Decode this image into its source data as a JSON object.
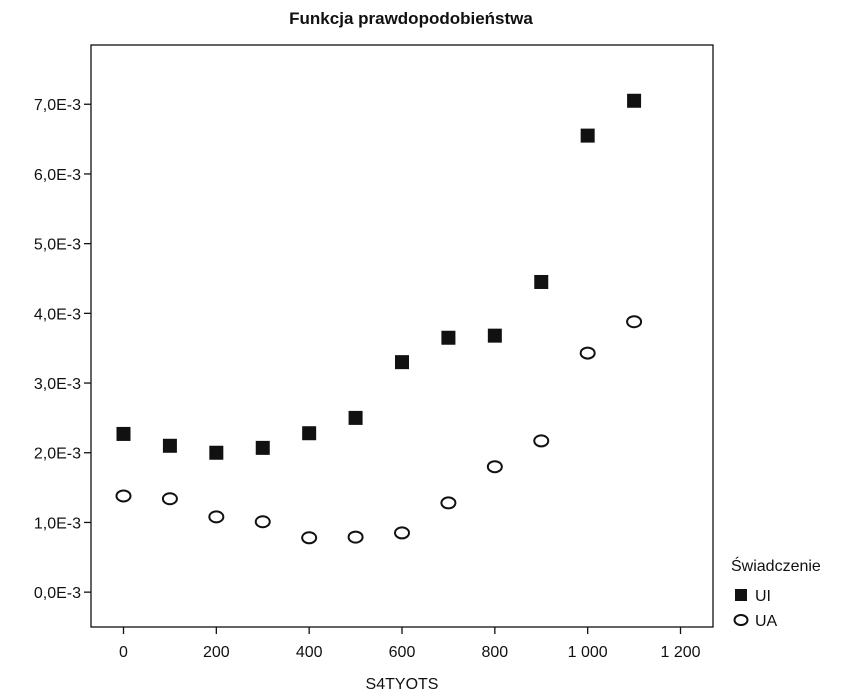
{
  "chart_data": {
    "type": "scatter",
    "title": "Funkcja prawdopodobieństwa",
    "xlabel": "S4TYOTS",
    "ylabel": "",
    "xlim": [
      -70,
      1270
    ],
    "ylim": [
      -0.0005,
      0.00785
    ],
    "x_ticks": [
      0,
      200,
      400,
      600,
      800,
      1000,
      1200
    ],
    "x_tick_labels": [
      "0",
      "200",
      "400",
      "600",
      "800",
      "1 000",
      "1 200"
    ],
    "y_ticks": [
      0,
      0.001,
      0.002,
      0.003,
      0.004,
      0.005,
      0.006,
      0.007
    ],
    "y_tick_labels": [
      "0,0E-3",
      "1,0E-3",
      "2,0E-3",
      "3,0E-3",
      "4,0E-3",
      "5,0E-3",
      "6,0E-3",
      "7,0E-3"
    ],
    "grid": false,
    "legend": {
      "title": "Świadczenie",
      "position": "right-bottom"
    },
    "series": [
      {
        "name": "UI",
        "marker": "filled-square",
        "color": "#111111",
        "x": [
          0,
          100,
          200,
          300,
          400,
          500,
          600,
          700,
          800,
          900,
          1000,
          1100
        ],
        "y": [
          0.00227,
          0.0021,
          0.002,
          0.00207,
          0.00228,
          0.0025,
          0.0033,
          0.00365,
          0.00368,
          0.00445,
          0.00655,
          0.00705
        ]
      },
      {
        "name": "UA",
        "marker": "open-circle",
        "color": "#111111",
        "x": [
          0,
          100,
          200,
          300,
          400,
          500,
          600,
          700,
          800,
          900,
          1000,
          1100
        ],
        "y": [
          0.00138,
          0.00134,
          0.00108,
          0.00101,
          0.00078,
          0.00079,
          0.00085,
          0.00128,
          0.0018,
          0.00217,
          0.00343,
          0.00388
        ]
      }
    ]
  }
}
